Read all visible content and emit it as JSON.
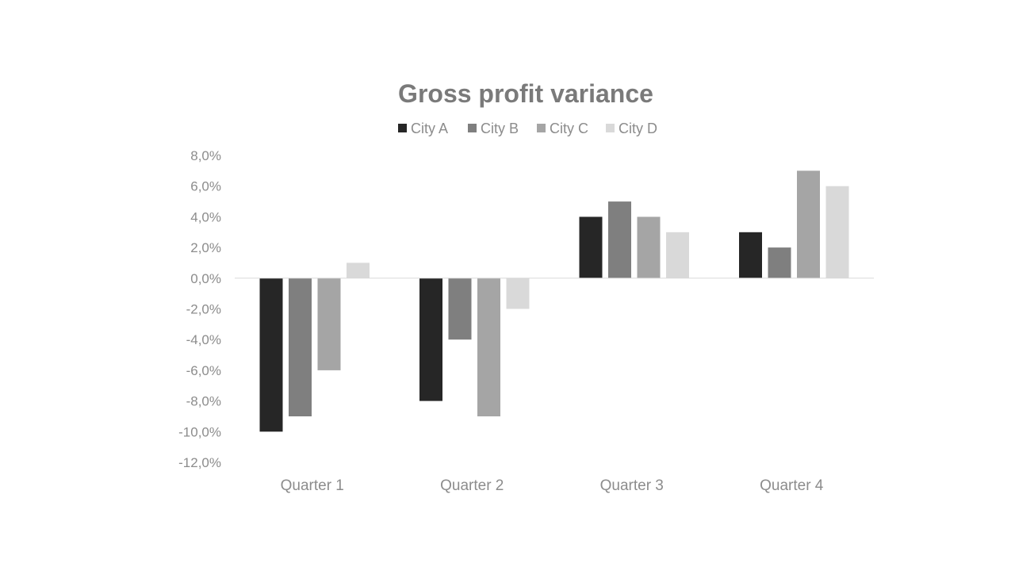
{
  "chart_data": {
    "type": "bar",
    "title": "Gross profit variance",
    "categories": [
      "Quarter 1",
      "Quarter 2",
      "Quarter 3",
      "Quarter 4"
    ],
    "series": [
      {
        "name": "City A",
        "color": "#262626",
        "values": [
          -10.0,
          -8.0,
          4.0,
          3.0
        ]
      },
      {
        "name": "City B",
        "color": "#7f7f7f",
        "values": [
          -9.0,
          -4.0,
          5.0,
          2.0
        ]
      },
      {
        "name": "City C",
        "color": "#a5a5a5",
        "values": [
          -6.0,
          -9.0,
          4.0,
          7.0
        ]
      },
      {
        "name": "City D",
        "color": "#d9d9d9",
        "values": [
          1.0,
          -2.0,
          3.0,
          6.0
        ]
      }
    ],
    "ylim": [
      -12,
      8
    ],
    "y_ticks": [
      8,
      6,
      4,
      2,
      0,
      -2,
      -4,
      -6,
      -8,
      -10,
      -12
    ],
    "y_tick_labels": [
      "8,0%",
      "6,0%",
      "4,0%",
      "2,0%",
      "0,0%",
      "-2,0%",
      "-4,0%",
      "-6,0%",
      "-8,0%",
      "-10,0%",
      "-12,0%"
    ],
    "xlabel": "",
    "ylabel": "",
    "grid": false,
    "legend_position": "top-center"
  }
}
